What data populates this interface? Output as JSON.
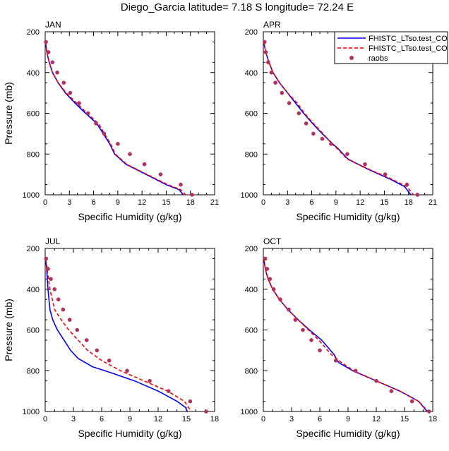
{
  "title": "Diego_Garcia  latitude= 7.18 S longitude= 72.24 E",
  "colors": {
    "case1": "#0000ff",
    "case2": "#ff0000",
    "obs": "#b03060",
    "axis": "#000000"
  },
  "legend": {
    "entries": [
      {
        "label": "FHISTC_LTso.test_CO",
        "style": "solid",
        "color": "#0000ff"
      },
      {
        "label": "FHISTC_LTso.test_CO",
        "style": "dashed",
        "color": "#ff0000"
      },
      {
        "label": "raobs",
        "style": "marker",
        "color": "#b03060"
      }
    ]
  },
  "chart_data": [
    {
      "type": "line",
      "title": "JAN",
      "xlabel": "Specific Humidity (g/kg)",
      "ylabel": "Pressure (mb)",
      "xlim": [
        0,
        21
      ],
      "ylim": [
        1000,
        200
      ],
      "y_reversed": true,
      "x_ticks": [
        "0",
        "3",
        "6",
        "9",
        "12",
        "15",
        "18",
        "21"
      ],
      "y_ticks": [
        "200",
        "400",
        "600",
        "800",
        "1000"
      ],
      "series": [
        {
          "name": "FHISTC_LTso.test_CO (solid)",
          "x": [
            0.05,
            0.2,
            0.5,
            0.9,
            1.6,
            2.5,
            3.7,
            5.0,
            6.4,
            8.0,
            8.6,
            10.0,
            12.5,
            15.0,
            16.6,
            17.1
          ],
          "y": [
            250,
            300,
            350,
            400,
            450,
            500,
            550,
            600,
            650,
            750,
            800,
            850,
            900,
            950,
            975,
            1000
          ]
        },
        {
          "name": "FHISTC_LTso.test_CO (dashed)",
          "x": [
            0.05,
            0.2,
            0.5,
            0.9,
            1.6,
            2.6,
            3.9,
            5.2,
            6.6,
            8.1,
            8.7,
            10.1,
            12.6,
            15.2,
            16.8,
            17.4
          ],
          "y": [
            250,
            300,
            350,
            400,
            450,
            500,
            550,
            600,
            650,
            750,
            800,
            850,
            900,
            950,
            975,
            1000
          ]
        },
        {
          "name": "raobs",
          "x": [
            0.1,
            0.4,
            0.9,
            1.5,
            2.3,
            3.1,
            4.2,
            5.3,
            6.3,
            7.3,
            9.0,
            10.5,
            12.3,
            14.3,
            16.8,
            18.2
          ],
          "y": [
            250,
            300,
            350,
            400,
            450,
            500,
            550,
            600,
            650,
            700,
            750,
            800,
            850,
            900,
            950,
            1000
          ]
        }
      ]
    },
    {
      "type": "line",
      "title": "APR",
      "xlabel": "Specific Humidity (g/kg)",
      "ylabel": "Pressure (mb)",
      "xlim": [
        0,
        21
      ],
      "ylim": [
        1000,
        200
      ],
      "y_reversed": true,
      "x_ticks": [
        "0",
        "3",
        "6",
        "9",
        "12",
        "15",
        "18",
        "21"
      ],
      "y_ticks": [
        "200",
        "400",
        "600",
        "800",
        "1000"
      ],
      "series": [
        {
          "name": "FHISTC_LTso.test_CO (solid)",
          "x": [
            0.05,
            0.3,
            0.7,
            1.2,
            2.0,
            3.0,
            4.0,
            5.0,
            6.1,
            7.3,
            8.6,
            9.3,
            10.5,
            13.0,
            15.8,
            17.5,
            18.3
          ],
          "y": [
            250,
            300,
            350,
            400,
            450,
            500,
            550,
            600,
            650,
            700,
            750,
            775,
            825,
            875,
            925,
            960,
            1000
          ]
        },
        {
          "name": "FHISTC_LTso.test_CO (dashed)",
          "x": [
            0.05,
            0.3,
            0.7,
            1.2,
            2.0,
            3.0,
            4.2,
            5.1,
            6.2,
            7.4,
            8.5,
            9.2,
            10.4,
            13.1,
            16.0,
            17.8,
            18.6
          ],
          "y": [
            250,
            300,
            350,
            400,
            450,
            500,
            550,
            600,
            650,
            700,
            750,
            775,
            825,
            875,
            925,
            960,
            1000
          ]
        },
        {
          "name": "raobs",
          "x": [
            0.15,
            0.3,
            0.6,
            1.0,
            1.5,
            2.3,
            3.2,
            4.4,
            5.3,
            6.2,
            7.3,
            8.4,
            10.4,
            12.6,
            15.1,
            17.8,
            19.1
          ],
          "y": [
            250,
            300,
            350,
            400,
            450,
            500,
            550,
            600,
            650,
            700,
            725,
            750,
            800,
            850,
            900,
            950,
            1000
          ]
        }
      ]
    },
    {
      "type": "line",
      "title": "JUL",
      "xlabel": "Specific Humidity (g/kg)",
      "ylabel": "Pressure (mb)",
      "xlim": [
        0,
        18
      ],
      "ylim": [
        1000,
        200
      ],
      "y_reversed": true,
      "x_ticks": [
        "0",
        "3",
        "6",
        "9",
        "12",
        "15",
        "18"
      ],
      "y_ticks": [
        "200",
        "400",
        "600",
        "800",
        "1000"
      ],
      "series": [
        {
          "name": "FHISTC_LTso.test_CO (solid)",
          "x": [
            0.05,
            0.15,
            0.3,
            0.5,
            0.8,
            1.3,
            2.0,
            2.7,
            3.5,
            5.0,
            7.0,
            9.5,
            12.0,
            14.0,
            14.9,
            15.1
          ],
          "y": [
            250,
            300,
            400,
            500,
            550,
            600,
            650,
            700,
            740,
            780,
            810,
            850,
            900,
            950,
            980,
            1000
          ]
        },
        {
          "name": "FHISTC_LTso.test_CO (dashed)",
          "x": [
            0.05,
            0.2,
            0.5,
            1.0,
            1.7,
            2.5,
            3.5,
            4.5,
            6.0,
            8.0,
            10.5,
            13.0,
            14.8,
            15.5
          ],
          "y": [
            250,
            300,
            400,
            500,
            550,
            600,
            650,
            700,
            750,
            800,
            850,
            900,
            950,
            1000
          ]
        },
        {
          "name": "raobs",
          "x": [
            0.1,
            0.3,
            0.6,
            1.0,
            1.4,
            1.9,
            2.6,
            3.4,
            4.4,
            5.5,
            6.8,
            8.7,
            11.1,
            13.1,
            15.4,
            17.1
          ],
          "y": [
            250,
            300,
            350,
            400,
            450,
            500,
            550,
            600,
            650,
            700,
            750,
            800,
            850,
            900,
            950,
            1000
          ]
        }
      ]
    },
    {
      "type": "line",
      "title": "OCT",
      "xlabel": "Specific Humidity (g/kg)",
      "ylabel": "Pressure (mb)",
      "xlim": [
        0,
        18
      ],
      "ylim": [
        1000,
        200
      ],
      "y_reversed": true,
      "x_ticks": [
        "0",
        "3",
        "6",
        "9",
        "12",
        "15",
        "18"
      ],
      "y_ticks": [
        "200",
        "400",
        "600",
        "800",
        "1000"
      ],
      "series": [
        {
          "name": "FHISTC_LTso.test_CO (solid)",
          "x": [
            0.05,
            0.2,
            0.5,
            1.0,
            1.7,
            2.6,
            3.7,
            4.9,
            6.2,
            7.5,
            8.0,
            9.5,
            12.0,
            14.5,
            16.5,
            17.4
          ],
          "y": [
            250,
            300,
            350,
            400,
            450,
            500,
            550,
            600,
            650,
            720,
            760,
            800,
            850,
            900,
            950,
            1000
          ]
        },
        {
          "name": "FHISTC_LTso.test_CO (dashed)",
          "x": [
            0.05,
            0.2,
            0.5,
            1.0,
            1.7,
            2.6,
            3.7,
            4.8,
            5.9,
            7.2,
            8.3,
            9.6,
            12.0,
            14.5,
            16.5,
            17.5
          ],
          "y": [
            250,
            300,
            350,
            400,
            450,
            500,
            550,
            600,
            650,
            720,
            760,
            800,
            850,
            900,
            950,
            1000
          ]
        },
        {
          "name": "raobs",
          "x": [
            0.2,
            0.4,
            0.7,
            1.1,
            1.8,
            2.7,
            3.4,
            4.2,
            5.1,
            6.0,
            7.7,
            9.8,
            12.0,
            13.6,
            15.8,
            17.6
          ],
          "y": [
            250,
            300,
            350,
            400,
            450,
            500,
            550,
            600,
            650,
            700,
            750,
            800,
            850,
            900,
            950,
            1000
          ]
        }
      ]
    }
  ]
}
